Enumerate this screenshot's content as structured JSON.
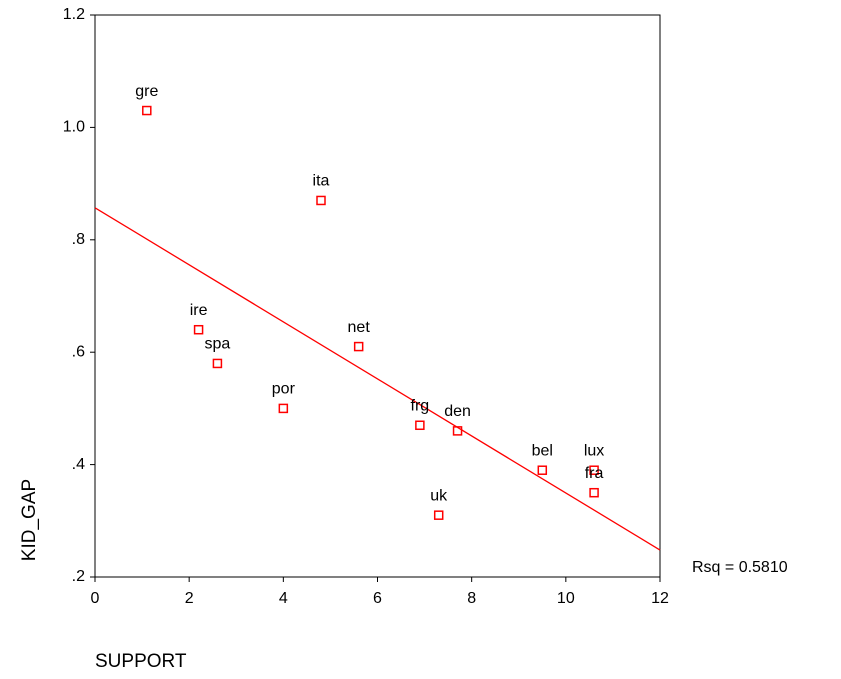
{
  "chart_data": {
    "type": "scatter",
    "x_label": "SUPPORT",
    "y_label": "KID_GAP",
    "annotation": "Rsq = 0.5810",
    "color": "#ff0000",
    "labels": [
      "gre",
      "ita",
      "ire",
      "spa",
      "net",
      "por",
      "frg",
      "den",
      "bel",
      "lux",
      "fra",
      "uk"
    ],
    "x": [
      1.1,
      4.8,
      2.2,
      2.6,
      5.6,
      4.0,
      6.9,
      7.7,
      9.5,
      10.6,
      10.6,
      7.3
    ],
    "values": [
      1.03,
      0.87,
      0.64,
      0.58,
      0.61,
      0.5,
      0.47,
      0.46,
      0.39,
      0.39,
      0.35,
      0.31
    ],
    "fit": {
      "x": [
        0,
        12
      ],
      "values": [
        0.857,
        0.248
      ]
    },
    "xlim": [
      0,
      12
    ],
    "xticks": [
      0,
      2,
      4,
      6,
      8,
      10,
      12
    ],
    "ylim": [
      0.2,
      1.2
    ],
    "yticks": [
      {
        "value": 0.2,
        "label": ".2"
      },
      {
        "value": 0.4,
        "label": ".4"
      },
      {
        "value": 0.6,
        "label": ".6"
      },
      {
        "value": 0.8,
        "label": ".8"
      },
      {
        "value": 1.0,
        "label": "1.0"
      },
      1.2
    ]
  }
}
